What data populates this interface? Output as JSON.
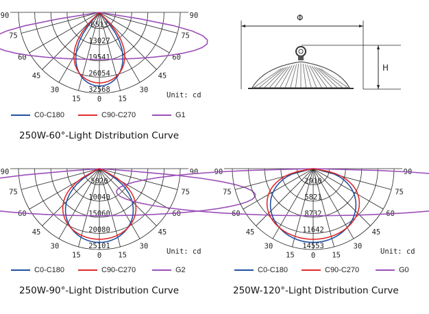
{
  "diagrams": [
    {
      "id": "d60",
      "intensity_ticks": [
        "6513",
        "13027",
        "19541",
        "26054",
        "32568"
      ],
      "angle_labels": [
        "90",
        "75",
        "60",
        "45",
        "30",
        "15",
        "0"
      ],
      "unit": "Unit: cd",
      "legend": [
        "C0-C180",
        "C90-C270",
        "G1"
      ],
      "caption": "250W-60°-Light Distribution Curve",
      "beam_half_angle_deg": 30
    },
    {
      "id": "d90",
      "intensity_ticks": [
        "5020",
        "10040",
        "15060",
        "20080",
        "25101"
      ],
      "angle_labels": [
        "90",
        "75",
        "60",
        "45",
        "30",
        "15",
        "0"
      ],
      "unit": "Unit: cd",
      "legend": [
        "C0-C180",
        "C90-C270",
        "G2"
      ],
      "caption": "250W-90°-Light Distribution Curve",
      "beam_half_angle_deg": 45
    },
    {
      "id": "d120",
      "intensity_ticks": [
        "2910",
        "5821",
        "8732",
        "11642",
        "14553"
      ],
      "angle_labels": [
        "90",
        "75",
        "60",
        "45",
        "30",
        "15",
        "0"
      ],
      "unit": "Unit: cd",
      "legend": [
        "C0-C180",
        "C90-C270",
        "G0"
      ],
      "caption": "250W-120°-Light Distribution Curve",
      "beam_half_angle_deg": 60
    }
  ],
  "lamp": {
    "diameter_symbol": "Φ",
    "height_symbol": "H"
  },
  "colors": {
    "c0": "#1f4fa3",
    "c90": "#e02a2a",
    "g": "#9b4fb8",
    "grid": "#222222"
  }
}
